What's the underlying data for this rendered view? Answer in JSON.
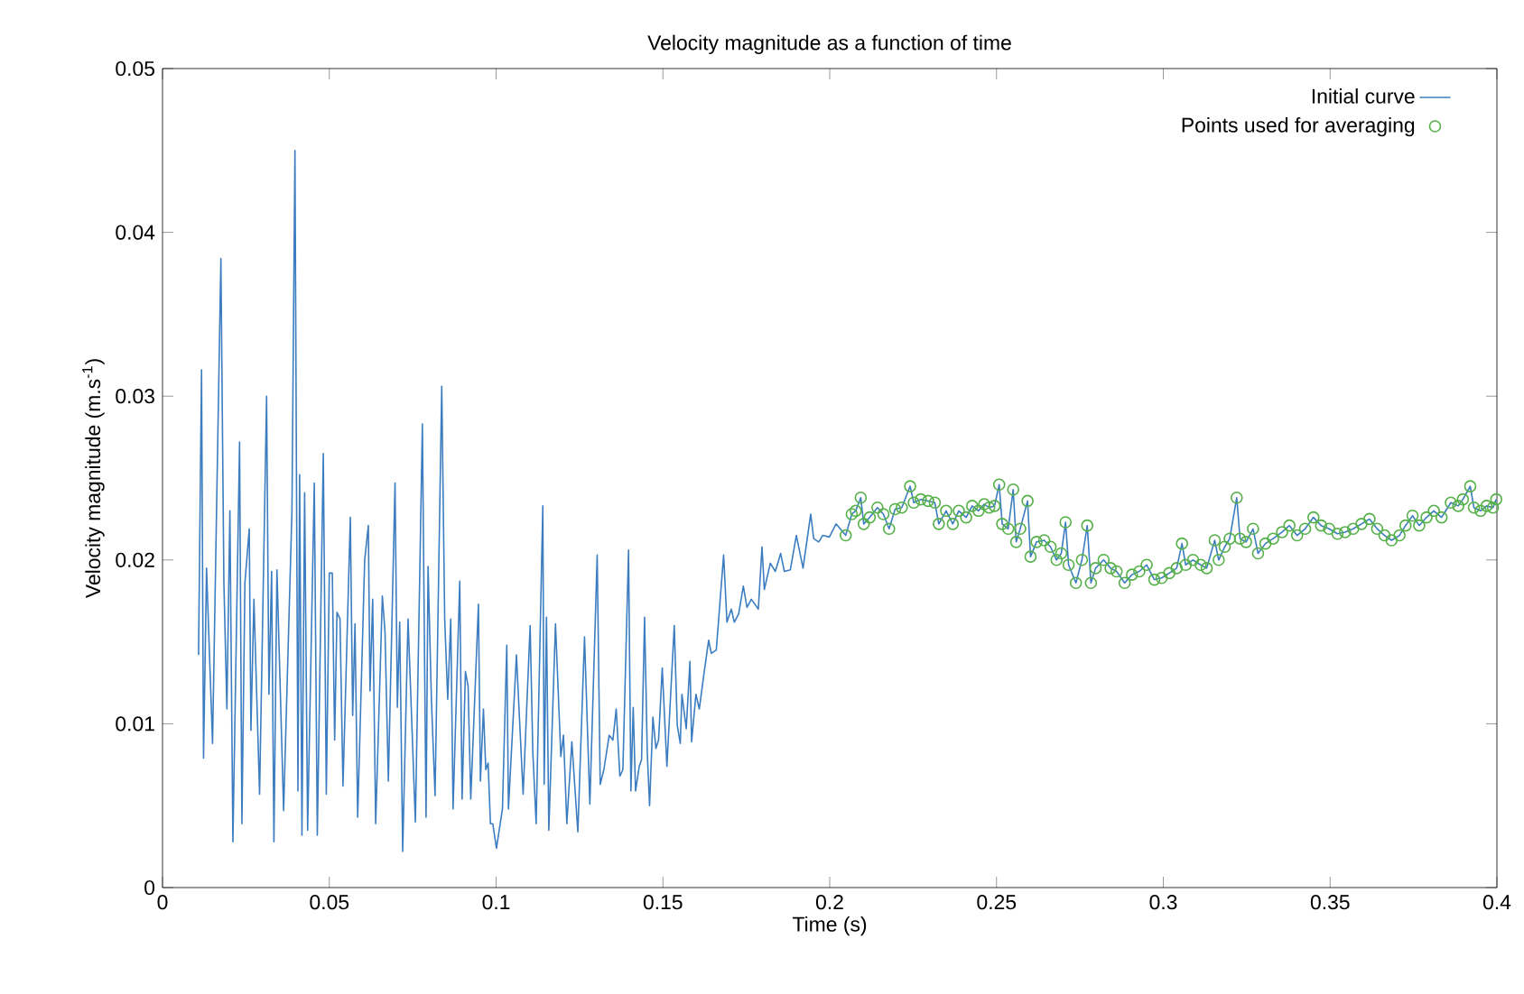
{
  "chart_data": {
    "type": "line",
    "title": "Velocity magnitude as a function of time",
    "xlabel": "Time (s)",
    "ylabel": "Velocity magnitude (m.s$^{-1}$)",
    "xlim": [
      0,
      0.4
    ],
    "ylim": [
      0,
      0.05
    ],
    "xticks": [
      0,
      0.05,
      0.1,
      0.15,
      0.2,
      0.25,
      0.3,
      0.35,
      0.4
    ],
    "yticks": [
      0,
      0.01,
      0.02,
      0.03,
      0.04,
      0.05
    ],
    "legend": "top right",
    "series": [
      {
        "name": "Initial curve",
        "color": "#3b7dc0",
        "x": [
          0.0108,
          0.0117,
          0.0123,
          0.0132,
          0.015,
          0.0175,
          0.0184,
          0.0193,
          0.0202,
          0.0211,
          0.0231,
          0.0238,
          0.0247,
          0.026,
          0.0265,
          0.0274,
          0.0291,
          0.0312,
          0.0319,
          0.0327,
          0.0334,
          0.0343,
          0.0363,
          0.0388,
          0.0397,
          0.0406,
          0.0411,
          0.0418,
          0.0426,
          0.0435,
          0.0455,
          0.0464,
          0.0482,
          0.0491,
          0.05,
          0.0509,
          0.0516,
          0.0523,
          0.0532,
          0.0541,
          0.0563,
          0.057,
          0.0577,
          0.0585,
          0.0606,
          0.0617,
          0.0622,
          0.063,
          0.0639,
          0.0659,
          0.0667,
          0.0677,
          0.0697,
          0.0704,
          0.0711,
          0.072,
          0.0736,
          0.0758,
          0.0779,
          0.079,
          0.0796,
          0.0806,
          0.0817,
          0.0837,
          0.0846,
          0.0855,
          0.0864,
          0.0871,
          0.0891,
          0.0898,
          0.0908,
          0.0916,
          0.0924,
          0.0947,
          0.0953,
          0.0962,
          0.0969,
          0.0976,
          0.0983,
          0.099,
          0.1001,
          0.1019,
          0.1032,
          0.1037,
          0.1061,
          0.1068,
          0.1081,
          0.1102,
          0.111,
          0.112,
          0.114,
          0.1144,
          0.1151,
          0.1158,
          0.1178,
          0.1194,
          0.1202,
          0.1212,
          0.1227,
          0.1245,
          0.1265,
          0.1281,
          0.1303,
          0.1312,
          0.1323,
          0.1339,
          0.135,
          0.136,
          0.1371,
          0.138,
          0.1397,
          0.1404,
          0.1411,
          0.1418,
          0.1429,
          0.1436,
          0.1445,
          0.1453,
          0.146,
          0.147,
          0.1479,
          0.1487,
          0.1498,
          0.1512,
          0.1534,
          0.1543,
          0.1552,
          0.1557,
          0.157,
          0.1581,
          0.1586,
          0.1599,
          0.1609,
          0.1624,
          0.1637,
          0.1645,
          0.166,
          0.1682,
          0.1692,
          0.1705,
          0.1714,
          0.1727,
          0.1741,
          0.1752,
          0.1765,
          0.1786,
          0.1797,
          0.1804,
          0.1822,
          0.1837,
          0.1853,
          0.1864,
          0.1882,
          0.19,
          0.192,
          0.1943,
          0.1952,
          0.1967,
          0.1979,
          0.1999,
          0.2019,
          0.2048,
          0.2066,
          0.2078,
          0.2093,
          0.2102,
          0.212,
          0.2143,
          0.2161,
          0.2178,
          0.2196,
          0.2216,
          0.2241,
          0.2252,
          0.2273,
          0.2295,
          0.2315,
          0.2327,
          0.2349,
          0.2369,
          0.2387,
          0.2409,
          0.2427,
          0.2446,
          0.2463,
          0.2478,
          0.2494,
          0.2508,
          0.2517,
          0.2535,
          0.255,
          0.2559,
          0.2571,
          0.2593,
          0.2602,
          0.262,
          0.2643,
          0.2662,
          0.268,
          0.2694,
          0.2707,
          0.2716,
          0.2738,
          0.2756,
          0.2772,
          0.2783,
          0.2797,
          0.2821,
          0.2842,
          0.286,
          0.2884,
          0.2906,
          0.2928,
          0.295,
          0.2973,
          0.2995,
          0.3018,
          0.304,
          0.3056,
          0.3067,
          0.3089,
          0.3112,
          0.313,
          0.3154,
          0.3166,
          0.3184,
          0.3199,
          0.322,
          0.323,
          0.3248,
          0.3269,
          0.3284,
          0.3306,
          0.3329,
          0.3356,
          0.3378,
          0.3401,
          0.3425,
          0.345,
          0.3473,
          0.3497,
          0.3522,
          0.3545,
          0.3569,
          0.3594,
          0.3618,
          0.3641,
          0.3663,
          0.3684,
          0.3708,
          0.3726,
          0.3747,
          0.3767,
          0.3789,
          0.3811,
          0.3834,
          0.3862,
          0.3884,
          0.3898,
          0.392,
          0.3931,
          0.3951,
          0.3969,
          0.3988,
          0.3998
        ],
        "values": [
          0.0142,
          0.0316,
          0.0079,
          0.0195,
          0.0088,
          0.0384,
          0.0186,
          0.0109,
          0.023,
          0.0028,
          0.0272,
          0.0039,
          0.0186,
          0.0219,
          0.0096,
          0.0176,
          0.0057,
          0.03,
          0.0118,
          0.0193,
          0.0028,
          0.0194,
          0.0047,
          0.023,
          0.045,
          0.0059,
          0.0252,
          0.0032,
          0.0241,
          0.0035,
          0.0247,
          0.0032,
          0.0265,
          0.0057,
          0.0192,
          0.0192,
          0.009,
          0.0168,
          0.0164,
          0.0062,
          0.0226,
          0.0105,
          0.0161,
          0.0043,
          0.02,
          0.0221,
          0.012,
          0.0176,
          0.0039,
          0.0178,
          0.0156,
          0.0065,
          0.0247,
          0.011,
          0.0162,
          0.0022,
          0.0164,
          0.004,
          0.0283,
          0.0043,
          0.0196,
          0.0115,
          0.0056,
          0.0306,
          0.0163,
          0.0115,
          0.0164,
          0.0048,
          0.0187,
          0.0054,
          0.0132,
          0.0123,
          0.0054,
          0.0173,
          0.0065,
          0.0109,
          0.0072,
          0.0076,
          0.0039,
          0.0039,
          0.0024,
          0.0048,
          0.0148,
          0.0048,
          0.0142,
          0.0112,
          0.0057,
          0.016,
          0.0083,
          0.0039,
          0.0233,
          0.0063,
          0.0165,
          0.0035,
          0.0161,
          0.008,
          0.0093,
          0.0039,
          0.0089,
          0.0034,
          0.0153,
          0.0051,
          0.0203,
          0.0063,
          0.0072,
          0.0093,
          0.009,
          0.0109,
          0.0068,
          0.0072,
          0.0206,
          0.0059,
          0.011,
          0.0059,
          0.0074,
          0.0078,
          0.0165,
          0.0083,
          0.005,
          0.0104,
          0.0085,
          0.009,
          0.0134,
          0.0074,
          0.016,
          0.0099,
          0.0088,
          0.0118,
          0.0097,
          0.0138,
          0.0089,
          0.0118,
          0.0109,
          0.0132,
          0.0151,
          0.0143,
          0.0145,
          0.0203,
          0.0162,
          0.017,
          0.0162,
          0.0167,
          0.0184,
          0.0171,
          0.0176,
          0.017,
          0.0208,
          0.0182,
          0.0198,
          0.0193,
          0.0204,
          0.0193,
          0.0194,
          0.0215,
          0.0195,
          0.0228,
          0.0213,
          0.0211,
          0.0215,
          0.0214,
          0.0222,
          0.0215,
          0.0228,
          0.023,
          0.0238,
          0.0222,
          0.0226,
          0.0232,
          0.0228,
          0.0219,
          0.0231,
          0.0232,
          0.0245,
          0.0235,
          0.0237,
          0.0236,
          0.0235,
          0.0222,
          0.023,
          0.0222,
          0.023,
          0.0226,
          0.0233,
          0.023,
          0.0234,
          0.0232,
          0.0233,
          0.0246,
          0.0222,
          0.0219,
          0.0243,
          0.0211,
          0.0219,
          0.0236,
          0.0202,
          0.0211,
          0.0212,
          0.0208,
          0.02,
          0.0204,
          0.0223,
          0.0197,
          0.0186,
          0.02,
          0.0221,
          0.0186,
          0.0195,
          0.02,
          0.0195,
          0.0193,
          0.0186,
          0.0191,
          0.0193,
          0.0197,
          0.0188,
          0.0189,
          0.0192,
          0.0195,
          0.021,
          0.0197,
          0.02,
          0.0197,
          0.0195,
          0.0212,
          0.02,
          0.0208,
          0.0213,
          0.0238,
          0.0213,
          0.0211,
          0.0219,
          0.0204,
          0.021,
          0.0213,
          0.0217,
          0.0221,
          0.0215,
          0.0219,
          0.0226,
          0.0221,
          0.0219,
          0.0216,
          0.0217,
          0.0219,
          0.0222,
          0.0225,
          0.0219,
          0.0215,
          0.0212,
          0.0215,
          0.0221,
          0.0227,
          0.0221,
          0.0226,
          0.023,
          0.0226,
          0.0235,
          0.0233,
          0.0237,
          0.0245,
          0.0232,
          0.023,
          0.0233,
          0.0232,
          0.0237
        ]
      },
      {
        "name": "Points used for averaging",
        "type": "scatter",
        "marker": "circle",
        "color": "#55b048",
        "x": [
          0.2048,
          0.2066,
          0.2078,
          0.2093,
          0.2102,
          0.212,
          0.2143,
          0.2161,
          0.2178,
          0.2196,
          0.2216,
          0.2241,
          0.2252,
          0.2273,
          0.2295,
          0.2315,
          0.2327,
          0.2349,
          0.2369,
          0.2387,
          0.2409,
          0.2427,
          0.2446,
          0.2463,
          0.2478,
          0.2494,
          0.2508,
          0.2517,
          0.2535,
          0.255,
          0.2559,
          0.2571,
          0.2593,
          0.2602,
          0.262,
          0.2643,
          0.2662,
          0.268,
          0.2694,
          0.2707,
          0.2716,
          0.2738,
          0.2756,
          0.2772,
          0.2783,
          0.2797,
          0.2821,
          0.2842,
          0.286,
          0.2884,
          0.2906,
          0.2928,
          0.295,
          0.2973,
          0.2995,
          0.3018,
          0.304,
          0.3056,
          0.3067,
          0.3089,
          0.3112,
          0.313,
          0.3154,
          0.3166,
          0.3184,
          0.3199,
          0.322,
          0.323,
          0.3248,
          0.3269,
          0.3284,
          0.3306,
          0.3329,
          0.3356,
          0.3378,
          0.3401,
          0.3425,
          0.345,
          0.3473,
          0.3497,
          0.3522,
          0.3545,
          0.3569,
          0.3594,
          0.3618,
          0.3641,
          0.3663,
          0.3684,
          0.3708,
          0.3726,
          0.3747,
          0.3767,
          0.3789,
          0.3811,
          0.3834,
          0.3862,
          0.3884,
          0.3898,
          0.392,
          0.3931,
          0.3951,
          0.3969,
          0.3988,
          0.3998
        ],
        "values": [
          0.0215,
          0.0228,
          0.023,
          0.0238,
          0.0222,
          0.0226,
          0.0232,
          0.0228,
          0.0219,
          0.0231,
          0.0232,
          0.0245,
          0.0235,
          0.0237,
          0.0236,
          0.0235,
          0.0222,
          0.023,
          0.0222,
          0.023,
          0.0226,
          0.0233,
          0.023,
          0.0234,
          0.0232,
          0.0233,
          0.0246,
          0.0222,
          0.0219,
          0.0243,
          0.0211,
          0.0219,
          0.0236,
          0.0202,
          0.0211,
          0.0212,
          0.0208,
          0.02,
          0.0204,
          0.0223,
          0.0197,
          0.0186,
          0.02,
          0.0221,
          0.0186,
          0.0195,
          0.02,
          0.0195,
          0.0193,
          0.0186,
          0.0191,
          0.0193,
          0.0197,
          0.0188,
          0.0189,
          0.0192,
          0.0195,
          0.021,
          0.0197,
          0.02,
          0.0197,
          0.0195,
          0.0212,
          0.02,
          0.0208,
          0.0213,
          0.0238,
          0.0213,
          0.0211,
          0.0219,
          0.0204,
          0.021,
          0.0213,
          0.0217,
          0.0221,
          0.0215,
          0.0219,
          0.0226,
          0.0221,
          0.0219,
          0.0216,
          0.0217,
          0.0219,
          0.0222,
          0.0225,
          0.0219,
          0.0215,
          0.0212,
          0.0215,
          0.0221,
          0.0227,
          0.0221,
          0.0226,
          0.023,
          0.0226,
          0.0235,
          0.0233,
          0.0237,
          0.0245,
          0.0232,
          0.023,
          0.0233,
          0.0232,
          0.0237
        ]
      }
    ]
  }
}
